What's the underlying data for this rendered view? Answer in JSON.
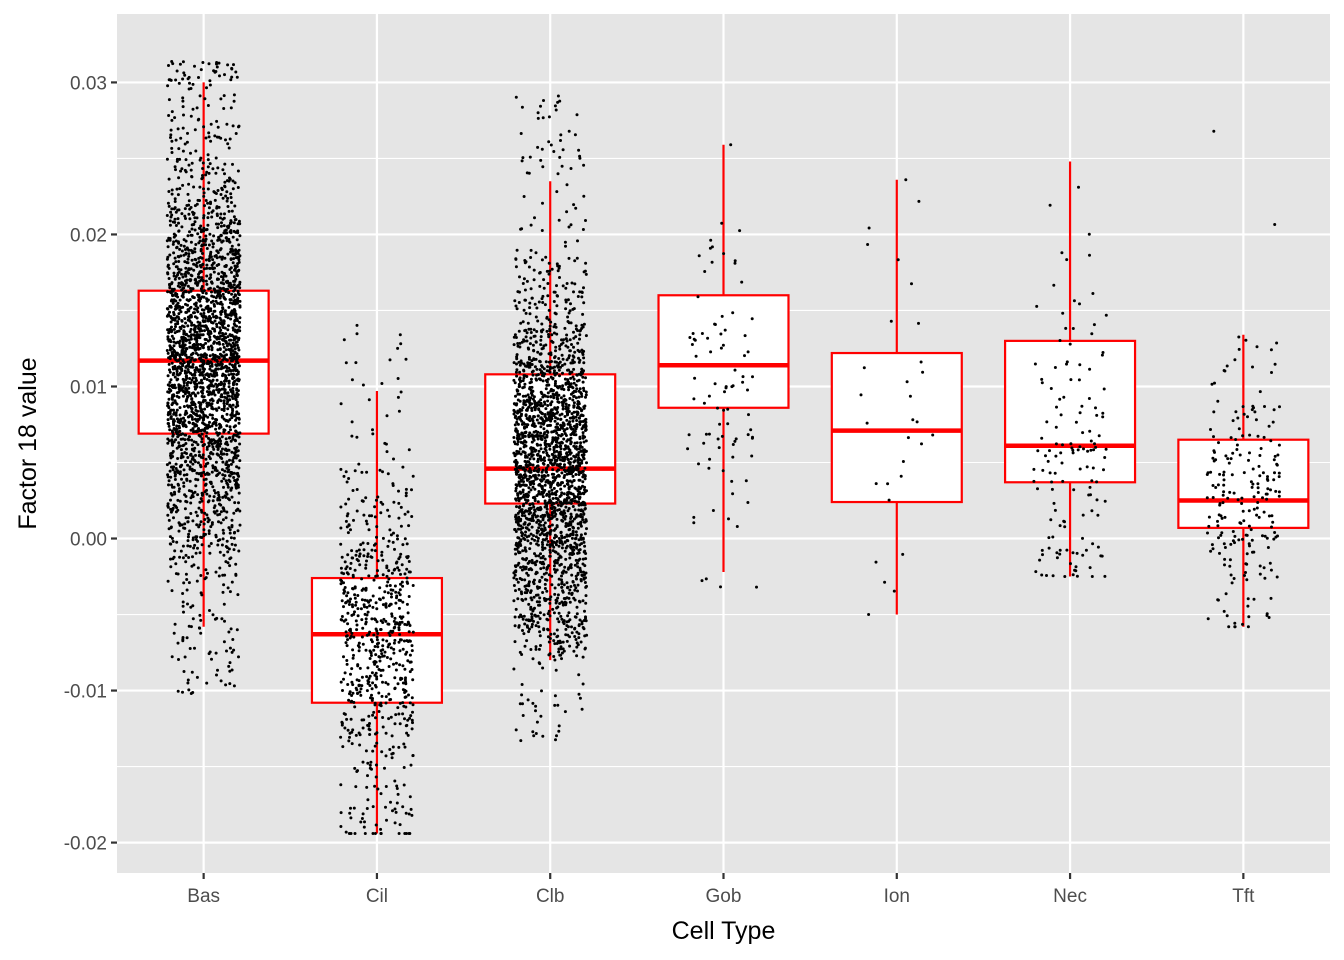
{
  "chart_data": {
    "type": "boxplot",
    "xlabel": "Cell Type",
    "ylabel": "Factor 18 value",
    "ylim": [
      -0.022,
      0.0345
    ],
    "y_ticks": [
      -0.02,
      -0.01,
      0.0,
      0.01,
      0.02,
      0.03
    ],
    "y_tick_labels": [
      "-0.02",
      "-0.01",
      "0.00",
      "0.01",
      "0.02",
      "0.03"
    ],
    "grid": true,
    "panel_background": "#e5e5e5",
    "box_color": "#ff0000",
    "point_color": "#000000",
    "categories": [
      "Bas",
      "Cil",
      "Clb",
      "Gob",
      "Ion",
      "Nec",
      "Tft"
    ],
    "boxes": [
      {
        "label": "Bas",
        "whisker_low": -0.0058,
        "q1": 0.0069,
        "median": 0.0117,
        "q3": 0.0163,
        "whisker_high": 0.03,
        "n_points": 2600,
        "point_min": -0.0103,
        "point_max": 0.0314
      },
      {
        "label": "Cil",
        "whisker_low": -0.0194,
        "q1": -0.0108,
        "median": -0.0063,
        "q3": -0.0026,
        "whisker_high": 0.0097,
        "n_points": 700,
        "point_min": -0.0194,
        "point_max": 0.0143
      },
      {
        "label": "Clb",
        "whisker_low": -0.008,
        "q1": 0.0023,
        "median": 0.0046,
        "q3": 0.0108,
        "whisker_high": 0.0235,
        "n_points": 2300,
        "point_min": -0.0137,
        "point_max": 0.0292
      },
      {
        "label": "Gob",
        "whisker_low": -0.0022,
        "q1": 0.0086,
        "median": 0.0114,
        "q3": 0.016,
        "whisker_high": 0.0259,
        "n_points": 90,
        "point_min": -0.004,
        "point_max": 0.0259
      },
      {
        "label": "Ion",
        "whisker_low": -0.005,
        "q1": 0.0024,
        "median": 0.0071,
        "q3": 0.0122,
        "whisker_high": 0.0236,
        "n_points": 30,
        "point_min": -0.005,
        "point_max": 0.0236
      },
      {
        "label": "Nec",
        "whisker_low": -0.0025,
        "q1": 0.0037,
        "median": 0.0061,
        "q3": 0.013,
        "whisker_high": 0.0248,
        "n_points": 140,
        "point_min": -0.0025,
        "point_max": 0.027
      },
      {
        "label": "Tft",
        "whisker_low": -0.0058,
        "q1": 0.0007,
        "median": 0.0025,
        "q3": 0.0065,
        "whisker_high": 0.0134,
        "n_points": 220,
        "point_min": -0.0058,
        "point_max": 0.0276
      }
    ]
  }
}
